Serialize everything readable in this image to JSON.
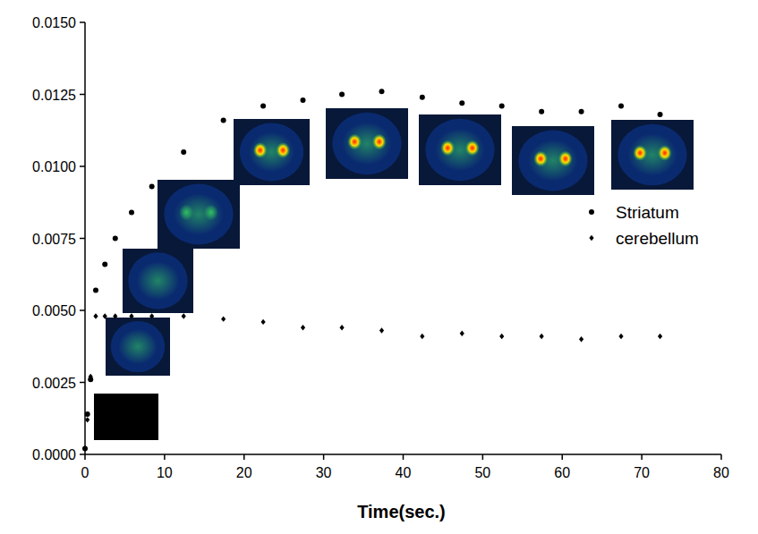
{
  "chart_data": {
    "type": "scatter",
    "x_label": "Time(sec.)",
    "x": [
      0,
      0.3,
      0.7,
      1.35,
      2.5,
      3.8,
      5.85,
      8.4,
      12.4,
      17.4,
      22.4,
      27.4,
      32.3,
      37.3,
      42.4,
      47.4,
      52.4,
      57.4,
      62.4,
      67.4,
      72.3
    ],
    "series": [
      {
        "name": "Striatum",
        "color": "#000000",
        "marker": "circle",
        "values": [
          0.0002,
          0.0014,
          0.0026,
          0.0057,
          0.0066,
          0.0075,
          0.0084,
          0.0093,
          0.0105,
          0.0116,
          0.0121,
          0.0123,
          0.0125,
          0.0126,
          0.0124,
          0.0122,
          0.0121,
          0.0119,
          0.0119,
          0.0121,
          0.0118
        ]
      },
      {
        "name": "cerebellum",
        "color": "#000000",
        "marker": "diamond",
        "values": [
          0.0002,
          0.0012,
          0.0027,
          0.0048,
          0.0048,
          0.0048,
          0.0048,
          0.0048,
          0.0048,
          0.0047,
          0.0046,
          0.0044,
          0.0044,
          0.0043,
          0.0041,
          0.0042,
          0.0041,
          0.0041,
          0.004,
          0.0041,
          0.0041
        ]
      }
    ],
    "xlim": [
      0,
      80
    ],
    "xticks": [
      0,
      10,
      20,
      30,
      40,
      50,
      60,
      70,
      80
    ],
    "ylim": [
      0,
      0.015
    ],
    "yticks": [
      {
        "value": 0,
        "label": "0.0000"
      },
      {
        "value": 0.0025,
        "label": "0.0025"
      },
      {
        "value": 0.005,
        "label": "0.0050"
      },
      {
        "value": 0.0075,
        "label": "0.0075"
      },
      {
        "value": 0.01,
        "label": "0.0100"
      },
      {
        "value": 0.0125,
        "label": "0.0125"
      },
      {
        "value": 0.015,
        "label": "0.0150"
      }
    ],
    "legend": "right",
    "grid": false
  }
}
